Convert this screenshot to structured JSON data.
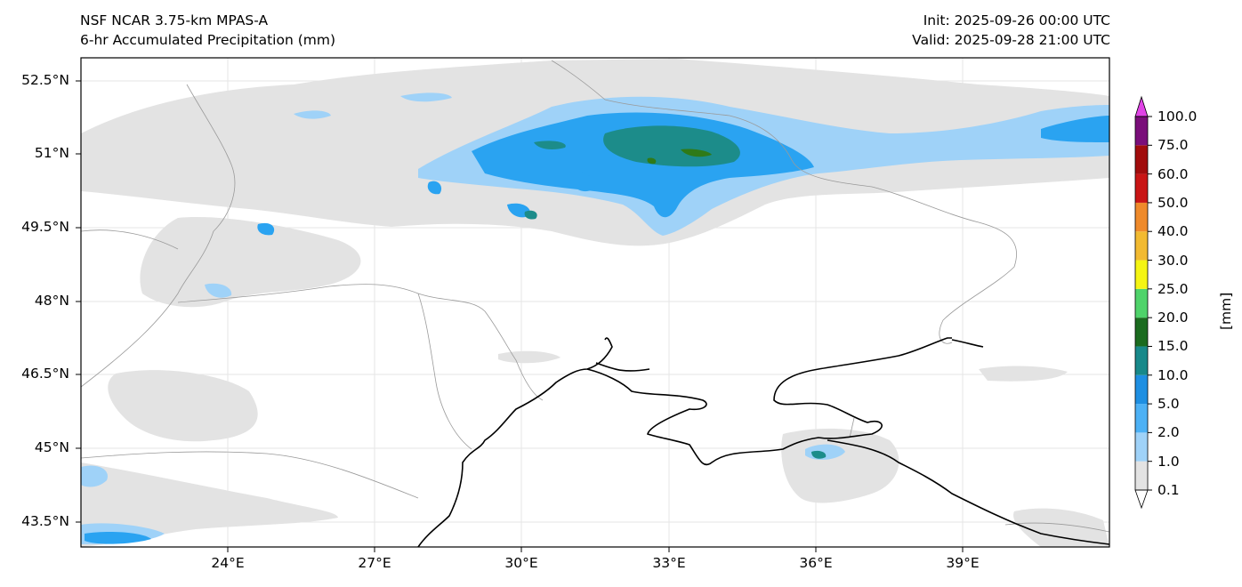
{
  "header": {
    "model": "NSF NCAR 3.75-km MPAS-A",
    "field": "6-hr Accumulated Precipitation (mm)",
    "init": "Init: 2025-09-26 00:00 UTC",
    "valid": "Valid: 2025-09-28 21:00 UTC"
  },
  "axes": {
    "lat_labels": [
      "52.5°N",
      "51°N",
      "49.5°N",
      "48°N",
      "46.5°N",
      "45°N",
      "43.5°N"
    ],
    "lon_labels": [
      "24°E",
      "27°E",
      "30°E",
      "33°E",
      "36°E",
      "39°E"
    ]
  },
  "colorbar": {
    "unit": "[mm]",
    "levels": [
      "0.1",
      "1.0",
      "2.0",
      "5.0",
      "10.0",
      "15.0",
      "20.0",
      "25.0",
      "30.0",
      "40.0",
      "50.0",
      "60.0",
      "75.0",
      "100.0"
    ],
    "colors": [
      "#e3e3e3",
      "#9fd2f8",
      "#4db1f5",
      "#1e8fe2",
      "#18898a",
      "#1b6b1f",
      "#4fd36a",
      "#f5f513",
      "#f2ba31",
      "#ef8a2b",
      "#c91515",
      "#a10c0c",
      "#7a0e7a",
      "#e043e6"
    ],
    "extend": "both"
  },
  "colors": {
    "light_gray": "#e3e3e3",
    "light_blue": "#9fd2f8",
    "blue": "#2aa3f1",
    "teal": "#1c8c8a",
    "green": "#2f7a18",
    "coast": "#000000",
    "border": "#9a9a9a"
  }
}
